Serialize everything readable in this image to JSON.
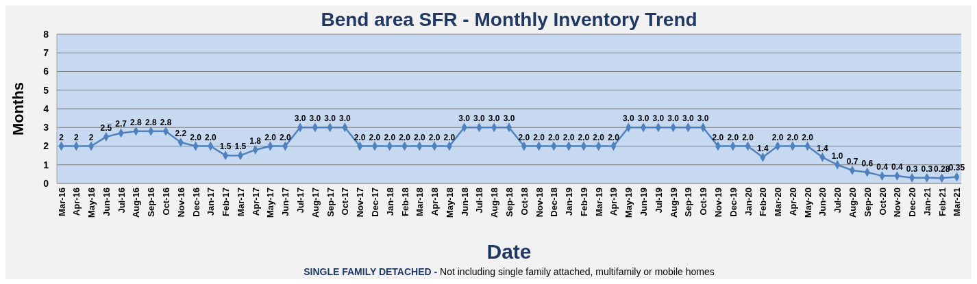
{
  "chart_data": {
    "type": "line",
    "title": "Bend area SFR - Monthly Inventory Trend",
    "xlabel": "Date",
    "ylabel": "Months",
    "annotations": [
      "SINGLE FAMILY DETACHED - Not including single family attached, multifamily or mobile homes"
    ],
    "categories": [
      "Mar-16",
      "Apr-16",
      "May-16",
      "Jun-16",
      "Jul-16",
      "Aug-16",
      "Sep-16",
      "Oct-16",
      "Nov-16",
      "Dec-16",
      "Jan-17",
      "Feb-17",
      "Mar-17",
      "Apr-17",
      "May-17",
      "Jun-17",
      "Jul-17",
      "Aug-17",
      "Sep-17",
      "Oct-17",
      "Nov-17",
      "Dec-17",
      "Jan-18",
      "Feb-18",
      "Mar-18",
      "Apr-18",
      "May-18",
      "Jun-18",
      "Jul-18",
      "Aug-18",
      "Sep-18",
      "Oct-18",
      "Nov-18",
      "Dec-18",
      "Jan-19",
      "Feb-19",
      "Mar-19",
      "Apr-19",
      "May-19",
      "Jun-19",
      "Jul-19",
      "Aug-19",
      "Sep-19",
      "Oct-19",
      "Nov-19",
      "Dec-19",
      "Jan-20",
      "Feb-20",
      "Mar-20",
      "Apr-20",
      "May-20",
      "Jun-20",
      "Jul-20",
      "Aug-20",
      "Sep-20",
      "Oct-20",
      "Nov-20",
      "Dec-20",
      "Jan-21",
      "Feb-21",
      "Mar-21"
    ],
    "series": [
      {
        "color": "#4f81bd",
        "values": [
          2,
          2,
          2,
          2.5,
          2.7,
          2.8,
          2.8,
          2.8,
          2.2,
          2.0,
          2.0,
          1.5,
          1.5,
          1.8,
          2.0,
          2.0,
          3.0,
          3.0,
          3.0,
          3.0,
          2.0,
          2.0,
          2.0,
          2.0,
          2.0,
          2.0,
          2.0,
          3.0,
          3.0,
          3.0,
          3.0,
          2.0,
          2.0,
          2.0,
          2.0,
          2.0,
          2.0,
          2.0,
          3.0,
          3.0,
          3.0,
          3.0,
          3.0,
          3.0,
          2.0,
          2.0,
          2.0,
          1.4,
          2.0,
          2.0,
          2.0,
          1.4,
          1.0,
          0.7,
          0.6,
          0.4,
          0.4,
          0.3,
          0.3,
          0.28,
          0.35
        ],
        "value_labels": [
          "2",
          "2",
          "2",
          "2.5",
          "2.7",
          "2.8",
          "2.8",
          "2.8",
          "2.2",
          "2.0",
          "2.0",
          "1.5",
          "1.5",
          "1.8",
          "2.0",
          "2.0",
          "3.0",
          "3.0",
          "3.0",
          "3.0",
          "2.0",
          "2.0",
          "2.0",
          "2.0",
          "2.0",
          "2.0",
          "2.0",
          "3.0",
          "3.0",
          "3.0",
          "3.0",
          "2.0",
          "2.0",
          "2.0",
          "2.0",
          "2.0",
          "2.0",
          "2.0",
          "3.0",
          "3.0",
          "3.0",
          "3.0",
          "3.0",
          "3.0",
          "2.0",
          "2.0",
          "2.0",
          "1.4",
          "2.0",
          "2.0",
          "2.0",
          "1.4",
          "1.0",
          "0.7",
          "0.6",
          "0.4",
          "0.4",
          "0.3",
          "0.3",
          "0.28",
          "0.35"
        ]
      }
    ],
    "ylim": [
      0,
      8
    ],
    "yticks": [
      0,
      1,
      2,
      3,
      4,
      5,
      6,
      7,
      8
    ],
    "grid": "y",
    "marker": "diamond",
    "line_style": "solid"
  }
}
